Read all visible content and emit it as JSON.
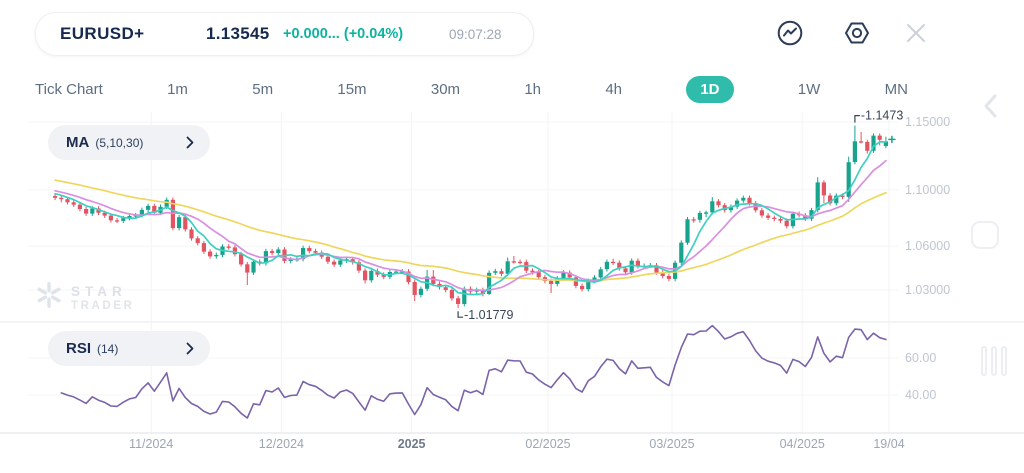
{
  "header": {
    "symbol": "EURUSD+",
    "price": "1.13545",
    "change": "+0.000... (+0.04%)",
    "time": "09:07:28",
    "icons": [
      "indicator-line-circle-icon",
      "settings-hexagon-icon",
      "close-icon"
    ]
  },
  "timeframes": {
    "tabs": [
      {
        "label": "Tick Chart",
        "active": false
      },
      {
        "label": "1m",
        "active": false
      },
      {
        "label": "5m",
        "active": false
      },
      {
        "label": "15m",
        "active": false
      },
      {
        "label": "30m",
        "active": false
      },
      {
        "label": "1h",
        "active": false
      },
      {
        "label": "4h",
        "active": false
      },
      {
        "label": "1D",
        "active": true
      },
      {
        "label": "1W",
        "active": false
      },
      {
        "label": "MN",
        "active": false
      }
    ]
  },
  "indicators": {
    "ma": {
      "name": "MA",
      "params": "(5,10,30)"
    },
    "rsi": {
      "name": "RSI",
      "params": "(14)"
    }
  },
  "watermark": {
    "line1": "STAR",
    "line2": "TRADER"
  },
  "annotations": {
    "high_label": "-1.1473",
    "low_label": "-1.01779"
  },
  "colors": {
    "accent_teal": "#2fbcab",
    "text_navy": "#16294e",
    "change_green": "#0db3a0",
    "candle_up": "#18a38d",
    "candle_down": "#e25462",
    "ma5": "#3ed0c2",
    "ma10": "#d98fe0",
    "ma30": "#eed75f",
    "rsi_line": "#7a63a9",
    "grid_h": "#f5f5f7",
    "grid_v": "#f6f3f4",
    "divider": "#eff0f3",
    "axis_line": "#e9ebee",
    "annotation_text": "#3a4557"
  },
  "chart_data": {
    "type": "candlestick",
    "title": "EURUSD+ 1D with MA(5,10,30) overlay and RSI(14) sub-panel",
    "price_axis": {
      "scale": "log",
      "labels": [
        {
          "label": "1.15000",
          "value": 1.15
        },
        {
          "label": "1.10000",
          "value": 1.1
        },
        {
          "label": "1.06000",
          "value": 1.06
        },
        {
          "label": "1.03000",
          "value": 1.03
        }
      ]
    },
    "rsi_axis": {
      "labels": [
        {
          "label": "60.00",
          "value": 60
        },
        {
          "label": "40.00",
          "value": 40
        }
      ]
    },
    "time_axis": {
      "labels": [
        {
          "label": "11/2024",
          "i": 16,
          "emph": false
        },
        {
          "label": "12/2024",
          "i": 37,
          "emph": false
        },
        {
          "label": "2025",
          "i": 58,
          "emph": true
        },
        {
          "label": "02/2025",
          "i": 80,
          "emph": false
        },
        {
          "label": "03/2025",
          "i": 100,
          "emph": false
        },
        {
          "label": "04/2025",
          "i": 121,
          "emph": false
        },
        {
          "label": "19/04",
          "i": 135,
          "emph": false
        }
      ]
    },
    "overlays": {
      "ma_periods": [
        5,
        10,
        30
      ],
      "rsi_period": 14
    },
    "extremes": {
      "high": 1.1473,
      "low": 1.01779
    },
    "ma_seed": [
      1.118,
      1.1172,
      1.1165,
      1.1157,
      1.1149,
      1.1142,
      1.1134,
      1.1127,
      1.1119,
      1.1112,
      1.1104,
      1.1096,
      1.1089,
      1.1081,
      1.1074,
      1.1066,
      1.1058,
      1.1051,
      1.1043,
      1.1036,
      1.1028,
      1.1021,
      1.1013,
      1.1005,
      1.0998,
      1.099,
      1.0983,
      1.0975,
      1.0968
    ],
    "candles": [
      [
        1.0955,
        1.0971,
        1.0926,
        1.0942
      ],
      [
        1.0942,
        1.0958,
        1.091,
        1.0932
      ],
      [
        1.0932,
        1.0948,
        1.0894,
        1.091
      ],
      [
        1.091,
        1.0926,
        1.0877,
        1.0893
      ],
      [
        1.0893,
        1.0909,
        1.0846,
        1.0862
      ],
      [
        1.0862,
        1.0878,
        1.0813,
        1.0829
      ],
      [
        1.0829,
        1.0882,
        1.0813,
        1.0866
      ],
      [
        1.0866,
        1.0882,
        1.0819,
        1.0835
      ],
      [
        1.0835,
        1.0851,
        1.0799,
        1.0815
      ],
      [
        1.0815,
        1.0831,
        1.0766,
        1.0782
      ],
      [
        1.0782,
        1.0798,
        1.0762,
        1.0778
      ],
      [
        1.0778,
        1.0813,
        1.0762,
        1.0797
      ],
      [
        1.0797,
        1.0828,
        1.0781,
        1.0812
      ],
      [
        1.0812,
        1.0834,
        1.0796,
        1.0818
      ],
      [
        1.0818,
        1.0872,
        1.0802,
        1.0856
      ],
      [
        1.0856,
        1.09,
        1.084,
        1.0884
      ],
      [
        1.0884,
        1.09,
        1.0819,
        1.0835
      ],
      [
        1.0835,
        1.0894,
        1.0819,
        1.0878
      ],
      [
        1.0878,
        1.0944,
        1.0862,
        1.0928
      ],
      [
        1.0928,
        1.0944,
        1.0711,
        1.0727
      ],
      [
        1.0727,
        1.082,
        1.0711,
        1.0804
      ],
      [
        1.0804,
        1.082,
        1.0702,
        1.0718
      ],
      [
        1.0718,
        1.0734,
        1.0639,
        1.0655
      ],
      [
        1.0655,
        1.0671,
        1.0606,
        1.0622
      ],
      [
        1.0622,
        1.0638,
        1.0547,
        1.0563
      ],
      [
        1.0563,
        1.0579,
        1.0514,
        1.053
      ],
      [
        1.053,
        1.0556,
        1.0514,
        1.054
      ],
      [
        1.054,
        1.0614,
        1.0524,
        1.0598
      ],
      [
        1.0598,
        1.0614,
        1.0576,
        1.0592
      ],
      [
        1.0592,
        1.0608,
        1.0529,
        1.0545
      ],
      [
        1.0545,
        1.0561,
        1.0459,
        1.0475
      ],
      [
        1.0475,
        1.0491,
        1.0333,
        1.0418
      ],
      [
        1.0418,
        1.0509,
        1.0402,
        1.0493
      ],
      [
        1.0493,
        1.0509,
        1.0466,
        1.0482
      ],
      [
        1.0482,
        1.0582,
        1.0466,
        1.0566
      ],
      [
        1.0566,
        1.0582,
        1.0537,
        1.0553
      ],
      [
        1.0553,
        1.0593,
        1.0537,
        1.0577
      ],
      [
        1.0577,
        1.0593,
        1.0482,
        1.0498
      ],
      [
        1.0498,
        1.0525,
        1.0482,
        1.0509
      ],
      [
        1.0509,
        1.0527,
        1.0493,
        1.0511
      ],
      [
        1.0511,
        1.0604,
        1.0495,
        1.0588
      ],
      [
        1.0588,
        1.0604,
        1.055,
        1.0566
      ],
      [
        1.0566,
        1.0582,
        1.0539,
        1.0555
      ],
      [
        1.0555,
        1.0571,
        1.0511,
        1.0527
      ],
      [
        1.0527,
        1.0543,
        1.0477,
        1.0493
      ],
      [
        1.0493,
        1.0509,
        1.0457,
        1.0473
      ],
      [
        1.0473,
        1.0517,
        1.0457,
        1.0501
      ],
      [
        1.0501,
        1.0526,
        1.0485,
        1.051
      ],
      [
        1.051,
        1.0526,
        1.0473,
        1.0489
      ],
      [
        1.0489,
        1.0505,
        1.0416,
        1.0432
      ],
      [
        1.0432,
        1.0448,
        1.0344,
        1.0366
      ],
      [
        1.0366,
        1.0446,
        1.035,
        1.043
      ],
      [
        1.043,
        1.0446,
        1.0388,
        1.0404
      ],
      [
        1.0404,
        1.042,
        1.0373,
        1.0389
      ],
      [
        1.0389,
        1.0438,
        1.0373,
        1.0422
      ],
      [
        1.0422,
        1.0441,
        1.0406,
        1.0425
      ],
      [
        1.0425,
        1.0442,
        1.0409,
        1.0426
      ],
      [
        1.0426,
        1.0442,
        1.0338,
        1.0354
      ],
      [
        1.0354,
        1.037,
        1.0226,
        1.0267
      ],
      [
        1.0267,
        1.0324,
        1.0251,
        1.0308
      ],
      [
        1.0308,
        1.0437,
        1.0292,
        1.0391
      ],
      [
        1.0391,
        1.0435,
        1.0325,
        1.0341
      ],
      [
        1.0341,
        1.0357,
        1.0303,
        1.0319
      ],
      [
        1.0319,
        1.0335,
        1.0284,
        1.03
      ],
      [
        1.03,
        1.0316,
        1.0228,
        1.0244
      ],
      [
        1.0244,
        1.026,
        1.0178,
        1.0206
      ],
      [
        1.0206,
        1.0324,
        1.019,
        1.0308
      ],
      [
        1.0308,
        1.0324,
        1.0273,
        1.0289
      ],
      [
        1.0289,
        1.0316,
        1.0273,
        1.03
      ],
      [
        1.03,
        1.0316,
        1.0257,
        1.0273
      ],
      [
        1.0273,
        1.0433,
        1.0266,
        1.0417
      ],
      [
        1.0417,
        1.0444,
        1.0401,
        1.0428
      ],
      [
        1.0428,
        1.0444,
        1.0394,
        1.041
      ],
      [
        1.041,
        1.0522,
        1.0394,
        1.0496
      ],
      [
        1.0496,
        1.0532,
        1.048,
        1.0492
      ],
      [
        1.0492,
        1.0508,
        1.0475,
        1.0491
      ],
      [
        1.0491,
        1.0507,
        1.0415,
        1.0431
      ],
      [
        1.0431,
        1.0447,
        1.0405,
        1.0421
      ],
      [
        1.0421,
        1.0437,
        1.0371,
        1.0387
      ],
      [
        1.0387,
        1.0403,
        1.0346,
        1.0362
      ],
      [
        1.0362,
        1.0378,
        1.028,
        1.0341
      ],
      [
        1.0341,
        1.0396,
        1.0325,
        1.038
      ],
      [
        1.038,
        1.0434,
        1.0364,
        1.0418
      ],
      [
        1.0418,
        1.0434,
        1.0369,
        1.0385
      ],
      [
        1.0385,
        1.0401,
        1.0312,
        1.0328
      ],
      [
        1.0328,
        1.0344,
        1.029,
        1.0306
      ],
      [
        1.0306,
        1.0378,
        1.029,
        1.0362
      ],
      [
        1.0362,
        1.0401,
        1.0346,
        1.0385
      ],
      [
        1.0385,
        1.0457,
        1.0369,
        1.0441
      ],
      [
        1.0441,
        1.0508,
        1.0425,
        1.0492
      ],
      [
        1.0492,
        1.0514,
        1.047,
        1.0486
      ],
      [
        1.0486,
        1.0502,
        1.0431,
        1.0447
      ],
      [
        1.0447,
        1.0463,
        1.0404,
        1.042
      ],
      [
        1.042,
        1.0516,
        1.0404,
        1.05
      ],
      [
        1.05,
        1.0516,
        1.0446,
        1.0462
      ],
      [
        1.0462,
        1.0481,
        1.0446,
        1.0465
      ],
      [
        1.0465,
        1.0484,
        1.0449,
        1.0468
      ],
      [
        1.0468,
        1.0484,
        1.0403,
        1.0419
      ],
      [
        1.0419,
        1.0435,
        1.0379,
        1.0395
      ],
      [
        1.0395,
        1.0411,
        1.0359,
        1.0375
      ],
      [
        1.0375,
        1.0502,
        1.0359,
        1.0486
      ],
      [
        1.0486,
        1.0641,
        1.047,
        1.0625
      ],
      [
        1.0625,
        1.0805,
        1.0609,
        1.0789
      ],
      [
        1.0789,
        1.0805,
        1.0765,
        1.0785
      ],
      [
        1.0785,
        1.085,
        1.0765,
        1.0834
      ],
      [
        1.0834,
        1.085,
        1.0804,
        1.0838
      ],
      [
        1.0838,
        1.0947,
        1.0822,
        1.0917
      ],
      [
        1.0917,
        1.0933,
        1.0873,
        1.0889
      ],
      [
        1.0889,
        1.0905,
        1.0837,
        1.0853
      ],
      [
        1.0853,
        1.0895,
        1.0837,
        1.0879
      ],
      [
        1.0879,
        1.0938,
        1.0863,
        1.0922
      ],
      [
        1.0922,
        1.0958,
        1.0906,
        1.0942
      ],
      [
        1.0942,
        1.0958,
        1.0887,
        1.0903
      ],
      [
        1.0903,
        1.0919,
        1.0837,
        1.0853
      ],
      [
        1.0853,
        1.0869,
        1.08,
        1.0816
      ],
      [
        1.0816,
        1.0832,
        1.0784,
        1.08
      ],
      [
        1.08,
        1.0816,
        1.0775,
        1.0791
      ],
      [
        1.0791,
        1.0807,
        1.0763,
        1.0779
      ],
      [
        1.0779,
        1.0795,
        1.0724,
        1.074
      ],
      [
        1.074,
        1.0844,
        1.0724,
        1.0828
      ],
      [
        1.0828,
        1.0844,
        1.0801,
        1.0817
      ],
      [
        1.0817,
        1.0833,
        1.0777,
        1.0793
      ],
      [
        1.0793,
        1.087,
        1.0777,
        1.0854
      ],
      [
        1.0854,
        1.109,
        1.0838,
        1.1053
      ],
      [
        1.1053,
        1.1069,
        1.0905,
        1.0959
      ],
      [
        1.0959,
        1.0975,
        1.0887,
        1.0903
      ],
      [
        1.0903,
        1.0974,
        1.0887,
        1.0958
      ],
      [
        1.0958,
        1.0974,
        1.0933,
        1.0949
      ],
      [
        1.0949,
        1.1241,
        1.0913,
        1.1201
      ],
      [
        1.1201,
        1.1473,
        1.1185,
        1.1355
      ],
      [
        1.1355,
        1.1425,
        1.1339,
        1.1351
      ],
      [
        1.1351,
        1.1367,
        1.1264,
        1.1285
      ],
      [
        1.1285,
        1.1414,
        1.1269,
        1.1398
      ],
      [
        1.1398,
        1.1414,
        1.1325,
        1.1367
      ],
      [
        1.132,
        1.139,
        1.1304,
        1.13545
      ]
    ]
  }
}
